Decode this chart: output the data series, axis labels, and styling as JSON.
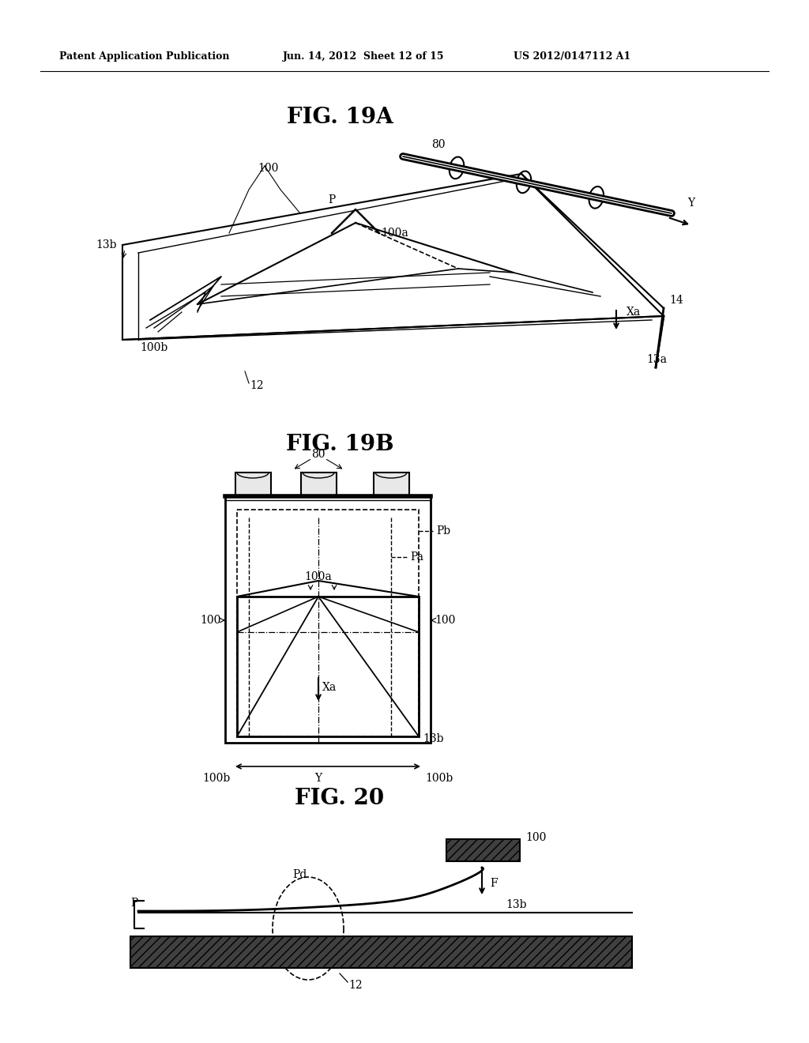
{
  "bg_color": "#ffffff",
  "header_left": "Patent Application Publication",
  "header_mid": "Jun. 14, 2012  Sheet 12 of 15",
  "header_right": "US 2012/0147112 A1",
  "fig19a_title": "FIG. 19A",
  "fig19b_title": "FIG. 19B",
  "fig20_title": "FIG. 20",
  "line_color": "#000000"
}
